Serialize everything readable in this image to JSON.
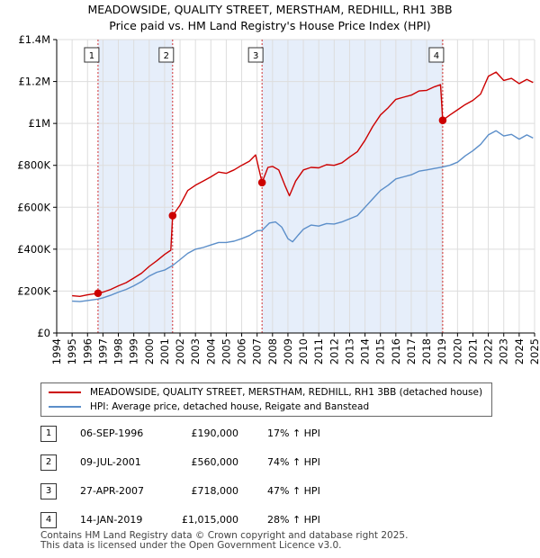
{
  "chart_data": {
    "type": "line",
    "title": "MEADOWSIDE, QUALITY STREET, MERSTHAM, REDHILL, RH1 3BB",
    "subtitle": "Price paid vs. HM Land Registry's House Price Index (HPI)",
    "xlim": [
      1994,
      2025
    ],
    "ylim": [
      0,
      1400000
    ],
    "x_ticks": [
      "1994",
      "1995",
      "1996",
      "1997",
      "1998",
      "1999",
      "2000",
      "2001",
      "2002",
      "2003",
      "2004",
      "2005",
      "2006",
      "2007",
      "2008",
      "2009",
      "2010",
      "2011",
      "2012",
      "2013",
      "2014",
      "2015",
      "2016",
      "2017",
      "2018",
      "2019",
      "2020",
      "2021",
      "2022",
      "2023",
      "2024",
      "2025"
    ],
    "y_ticks": [
      {
        "value": 0,
        "label": "£0"
      },
      {
        "value": 200000,
        "label": "£200K"
      },
      {
        "value": 400000,
        "label": "£400K"
      },
      {
        "value": 600000,
        "label": "£600K"
      },
      {
        "value": 800000,
        "label": "£800K"
      },
      {
        "value": 1000000,
        "label": "£1M"
      },
      {
        "value": 1200000,
        "label": "£1.2M"
      },
      {
        "value": 1400000,
        "label": "£1.4M"
      }
    ],
    "shaded_ranges": [
      [
        1996.68,
        2001.52
      ],
      [
        2007.32,
        2019.04
      ]
    ],
    "colors": {
      "property": "#cc0000",
      "hpi": "#5b8ec9",
      "shade": "#e6eefa"
    },
    "series": [
      {
        "name": "MEADOWSIDE, QUALITY STREET, MERSTHAM, REDHILL, RH1 3BB (detached house)",
        "points": [
          [
            1995,
            178000
          ],
          [
            1995.5,
            175000
          ],
          [
            1996,
            182000
          ],
          [
            1996.68,
            190000
          ],
          [
            1997,
            195000
          ],
          [
            1997.5,
            208000
          ],
          [
            1998,
            225000
          ],
          [
            1998.5,
            240000
          ],
          [
            1999,
            262000
          ],
          [
            1999.5,
            285000
          ],
          [
            2000,
            318000
          ],
          [
            2000.5,
            345000
          ],
          [
            2001,
            375000
          ],
          [
            2001.4,
            395000
          ],
          [
            2001.52,
            560000
          ],
          [
            2002,
            610000
          ],
          [
            2002.5,
            680000
          ],
          [
            2003,
            705000
          ],
          [
            2003.5,
            725000
          ],
          [
            2004,
            745000
          ],
          [
            2004.5,
            768000
          ],
          [
            2005,
            762000
          ],
          [
            2005.5,
            778000
          ],
          [
            2006,
            800000
          ],
          [
            2006.5,
            820000
          ],
          [
            2006.9,
            850000
          ],
          [
            2007.32,
            718000
          ],
          [
            2007.7,
            790000
          ],
          [
            2008,
            795000
          ],
          [
            2008.4,
            778000
          ],
          [
            2008.8,
            705000
          ],
          [
            2009.1,
            655000
          ],
          [
            2009.5,
            725000
          ],
          [
            2010,
            778000
          ],
          [
            2010.5,
            790000
          ],
          [
            2011,
            788000
          ],
          [
            2011.5,
            803000
          ],
          [
            2012,
            800000
          ],
          [
            2012.5,
            812000
          ],
          [
            2013,
            840000
          ],
          [
            2013.5,
            865000
          ],
          [
            2014,
            920000
          ],
          [
            2014.5,
            985000
          ],
          [
            2015,
            1040000
          ],
          [
            2015.5,
            1075000
          ],
          [
            2016,
            1115000
          ],
          [
            2016.5,
            1125000
          ],
          [
            2017,
            1135000
          ],
          [
            2017.5,
            1155000
          ],
          [
            2018,
            1158000
          ],
          [
            2018.5,
            1175000
          ],
          [
            2018.9,
            1185000
          ],
          [
            2019.04,
            1015000
          ],
          [
            2019.5,
            1040000
          ],
          [
            2020,
            1065000
          ],
          [
            2020.5,
            1090000
          ],
          [
            2021,
            1110000
          ],
          [
            2021.5,
            1140000
          ],
          [
            2022,
            1225000
          ],
          [
            2022.5,
            1245000
          ],
          [
            2023,
            1205000
          ],
          [
            2023.5,
            1215000
          ],
          [
            2024,
            1190000
          ],
          [
            2024.5,
            1210000
          ],
          [
            2024.9,
            1195000
          ]
        ]
      },
      {
        "name": "HPI: Average price, detached house, Reigate and Banstead",
        "points": [
          [
            1995,
            152000
          ],
          [
            1995.5,
            150000
          ],
          [
            1996,
            155000
          ],
          [
            1996.68,
            162000
          ],
          [
            1997,
            168000
          ],
          [
            1997.5,
            180000
          ],
          [
            1998,
            195000
          ],
          [
            1998.5,
            208000
          ],
          [
            1999,
            225000
          ],
          [
            1999.5,
            245000
          ],
          [
            2000,
            272000
          ],
          [
            2000.5,
            290000
          ],
          [
            2001,
            300000
          ],
          [
            2001.52,
            322000
          ],
          [
            2002,
            350000
          ],
          [
            2002.5,
            380000
          ],
          [
            2003,
            400000
          ],
          [
            2003.5,
            408000
          ],
          [
            2004,
            420000
          ],
          [
            2004.5,
            432000
          ],
          [
            2005,
            432000
          ],
          [
            2005.5,
            438000
          ],
          [
            2006,
            450000
          ],
          [
            2006.5,
            465000
          ],
          [
            2007,
            488000
          ],
          [
            2007.32,
            490000
          ],
          [
            2007.8,
            525000
          ],
          [
            2008.2,
            530000
          ],
          [
            2008.6,
            505000
          ],
          [
            2009,
            450000
          ],
          [
            2009.3,
            435000
          ],
          [
            2009.7,
            470000
          ],
          [
            2010,
            495000
          ],
          [
            2010.5,
            515000
          ],
          [
            2011,
            510000
          ],
          [
            2011.5,
            522000
          ],
          [
            2012,
            520000
          ],
          [
            2012.5,
            530000
          ],
          [
            2013,
            545000
          ],
          [
            2013.5,
            560000
          ],
          [
            2014,
            600000
          ],
          [
            2014.5,
            640000
          ],
          [
            2015,
            680000
          ],
          [
            2015.5,
            705000
          ],
          [
            2016,
            735000
          ],
          [
            2016.5,
            745000
          ],
          [
            2017,
            755000
          ],
          [
            2017.5,
            772000
          ],
          [
            2018,
            778000
          ],
          [
            2018.5,
            785000
          ],
          [
            2019.04,
            792000
          ],
          [
            2019.5,
            800000
          ],
          [
            2020,
            815000
          ],
          [
            2020.5,
            845000
          ],
          [
            2021,
            870000
          ],
          [
            2021.5,
            900000
          ],
          [
            2022,
            945000
          ],
          [
            2022.5,
            965000
          ],
          [
            2023,
            940000
          ],
          [
            2023.5,
            948000
          ],
          [
            2024,
            925000
          ],
          [
            2024.5,
            945000
          ],
          [
            2024.9,
            930000
          ]
        ]
      }
    ],
    "sales": [
      {
        "id": "1",
        "year": 1996.68,
        "price": 190000,
        "date": "06-SEP-1996",
        "price_label": "£190,000",
        "hpi": "17% ↑ HPI"
      },
      {
        "id": "2",
        "year": 2001.52,
        "price": 560000,
        "date": "09-JUL-2001",
        "price_label": "£560,000",
        "hpi": "74% ↑ HPI"
      },
      {
        "id": "3",
        "year": 2007.32,
        "price": 718000,
        "date": "27-APR-2007",
        "price_label": "£718,000",
        "hpi": "47% ↑ HPI"
      },
      {
        "id": "4",
        "year": 2019.04,
        "price": 1015000,
        "date": "14-JAN-2019",
        "price_label": "£1,015,000",
        "hpi": "28% ↑ HPI"
      }
    ]
  },
  "legend": {
    "property_label": "MEADOWSIDE, QUALITY STREET, MERSTHAM, REDHILL, RH1 3BB (detached house)",
    "hpi_label": "HPI: Average price, detached house, Reigate and Banstead"
  },
  "footer": {
    "line1": "Contains HM Land Registry data © Crown copyright and database right 2025.",
    "line2": "This data is licensed under the Open Government Licence v3.0."
  }
}
